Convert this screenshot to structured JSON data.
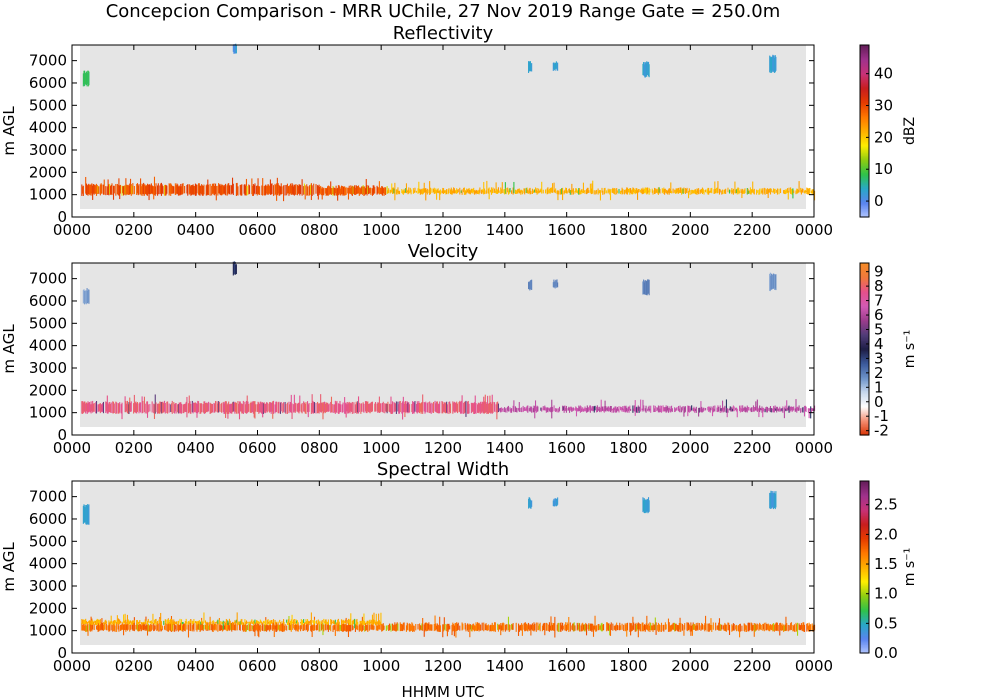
{
  "chart_data": [
    {
      "type": "heatmap",
      "panel_id": "reflectivity",
      "title": "Reflectivity",
      "ylabel": "m AGL",
      "xlabel": "",
      "x_ticks": [
        "0000",
        "0200",
        "0400",
        "0600",
        "0800",
        "1000",
        "1200",
        "1400",
        "1600",
        "1800",
        "2000",
        "2200",
        "0000"
      ],
      "xlim_hours": [
        0,
        24
      ],
      "y_ticks": [
        "0",
        "1000",
        "2000",
        "3000",
        "4000",
        "5000",
        "6000",
        "7000"
      ],
      "ylim": [
        0,
        7700
      ],
      "background": "#e5e5e5",
      "colorbar": {
        "label": "dBZ",
        "range": [
          -5,
          49
        ],
        "ticks": [
          "0",
          "10",
          "20",
          "30",
          "40"
        ],
        "tick_values": [
          0,
          10,
          20,
          30,
          40
        ],
        "colors": [
          "#b3c6ff",
          "#5a84ee",
          "#29a8c8",
          "#2fc24a",
          "#8ecc12",
          "#ffee00",
          "#ffb000",
          "#ff7800",
          "#e63c00",
          "#c81e1e",
          "#c83278",
          "#a0328c",
          "#641e5a"
        ]
      },
      "series": [
        {
          "layer": "boundary layer echo",
          "hours": [
            0.3,
            8.0
          ],
          "alt": [
            1000,
            1450
          ],
          "value": 30
        },
        {
          "layer": "boundary layer echo",
          "hours": [
            8.0,
            10.2
          ],
          "alt": [
            1000,
            1350
          ],
          "value": 29
        },
        {
          "layer": "boundary layer echo",
          "hours": [
            10.2,
            24.0
          ],
          "alt": [
            1050,
            1250
          ],
          "value": 22
        },
        {
          "layer": "high cloud",
          "hours": [
            0.35,
            0.55
          ],
          "alt": [
            5900,
            6500
          ],
          "value": 8
        },
        {
          "layer": "high cloud",
          "hours": [
            5.2,
            5.3
          ],
          "alt": [
            7350,
            7700
          ],
          "value": 2
        },
        {
          "layer": "high cloud",
          "hours": [
            14.75,
            14.85
          ],
          "alt": [
            6500,
            6900
          ],
          "value": 3
        },
        {
          "layer": "high cloud",
          "hours": [
            15.55,
            15.7
          ],
          "alt": [
            6600,
            6900
          ],
          "value": 3
        },
        {
          "layer": "high cloud",
          "hours": [
            18.45,
            18.65
          ],
          "alt": [
            6300,
            6900
          ],
          "value": 3
        },
        {
          "layer": "high cloud",
          "hours": [
            22.55,
            22.75
          ],
          "alt": [
            6500,
            7200
          ],
          "value": 3
        }
      ]
    },
    {
      "type": "heatmap",
      "panel_id": "velocity",
      "title": "Velocity",
      "ylabel": "m AGL",
      "xlabel": "",
      "x_ticks": [
        "0000",
        "0200",
        "0400",
        "0600",
        "0800",
        "1000",
        "1200",
        "1400",
        "1600",
        "1800",
        "2000",
        "2200",
        "0000"
      ],
      "xlim_hours": [
        0,
        24
      ],
      "y_ticks": [
        "0",
        "1000",
        "2000",
        "3000",
        "4000",
        "5000",
        "6000",
        "7000"
      ],
      "ylim": [
        0,
        7700
      ],
      "background": "#e5e5e5",
      "colorbar": {
        "label": "m s⁻¹",
        "range": [
          -2.3,
          9.6
        ],
        "ticks": [
          "-2",
          "-1",
          "0",
          "1",
          "2",
          "3",
          "4",
          "5",
          "6",
          "7",
          "8",
          "9"
        ],
        "tick_values": [
          -2,
          -1,
          0,
          1,
          2,
          3,
          4,
          5,
          6,
          7,
          8,
          9
        ],
        "colors": [
          "#d73000",
          "#f48c70",
          "#ffffff",
          "#c8d8ee",
          "#6c92c8",
          "#3c5a9c",
          "#1e1e46",
          "#503c78",
          "#9b3c8c",
          "#d25ab4",
          "#e6508c",
          "#f0783c",
          "#f58c28"
        ]
      },
      "series": [
        {
          "layer": "boundary layer echo",
          "hours": [
            0.3,
            13.8
          ],
          "alt": [
            1000,
            1450
          ],
          "value": 7.8
        },
        {
          "layer": "boundary layer echo",
          "hours": [
            13.8,
            24.0
          ],
          "alt": [
            1050,
            1250
          ],
          "value": 6.3
        },
        {
          "layer": "high cloud",
          "hours": [
            0.35,
            0.55
          ],
          "alt": [
            5900,
            6500
          ],
          "value": 1.5
        },
        {
          "layer": "high cloud",
          "hours": [
            5.2,
            5.3
          ],
          "alt": [
            7200,
            7700
          ],
          "value": 3.2
        },
        {
          "layer": "high cloud",
          "hours": [
            14.75,
            14.85
          ],
          "alt": [
            6500,
            6900
          ],
          "value": 1.8
        },
        {
          "layer": "high cloud",
          "hours": [
            15.55,
            15.7
          ],
          "alt": [
            6600,
            6900
          ],
          "value": 1.8
        },
        {
          "layer": "high cloud",
          "hours": [
            18.45,
            18.65
          ],
          "alt": [
            6300,
            6900
          ],
          "value": 2.0
        },
        {
          "layer": "high cloud",
          "hours": [
            22.55,
            22.75
          ],
          "alt": [
            6500,
            7200
          ],
          "value": 1.6
        }
      ]
    },
    {
      "type": "heatmap",
      "panel_id": "spectral-width",
      "title": "Spectral Width",
      "ylabel": "m AGL",
      "xlabel": "HHMM UTC",
      "x_ticks": [
        "0000",
        "0200",
        "0400",
        "0600",
        "0800",
        "1000",
        "1200",
        "1400",
        "1600",
        "1800",
        "2000",
        "2200",
        "0000"
      ],
      "xlim_hours": [
        0,
        24
      ],
      "y_ticks": [
        "0",
        "1000",
        "2000",
        "3000",
        "4000",
        "5000",
        "6000",
        "7000"
      ],
      "ylim": [
        0,
        7700
      ],
      "background": "#e5e5e5",
      "colorbar": {
        "label": "m s⁻¹",
        "range": [
          0,
          2.9
        ],
        "ticks": [
          "0.0",
          "0.5",
          "1.0",
          "1.5",
          "2.0",
          "2.5"
        ],
        "tick_values": [
          0,
          0.5,
          1.0,
          1.5,
          2.0,
          2.5
        ],
        "colors": [
          "#b3c6ff",
          "#5a84ee",
          "#29a8c8",
          "#2fc24a",
          "#8ecc12",
          "#ffee00",
          "#ffb000",
          "#ff7800",
          "#e63c00",
          "#c81e1e",
          "#c83278",
          "#a0328c",
          "#641e5a"
        ]
      },
      "series": [
        {
          "layer": "boundary layer echo",
          "hours": [
            0.3,
            24.0
          ],
          "alt": [
            1000,
            1300
          ],
          "value": 1.75
        },
        {
          "layer": "boundary layer echo (upper)",
          "hours": [
            0.3,
            10.0
          ],
          "alt": [
            1300,
            1450
          ],
          "value": 1.45
        },
        {
          "layer": "high cloud",
          "hours": [
            0.35,
            0.55
          ],
          "alt": [
            5800,
            6600
          ],
          "value": 0.4
        },
        {
          "layer": "high cloud",
          "hours": [
            14.75,
            14.85
          ],
          "alt": [
            6500,
            6900
          ],
          "value": 0.4
        },
        {
          "layer": "high cloud",
          "hours": [
            15.55,
            15.7
          ],
          "alt": [
            6600,
            6900
          ],
          "value": 0.4
        },
        {
          "layer": "high cloud",
          "hours": [
            18.45,
            18.65
          ],
          "alt": [
            6300,
            6900
          ],
          "value": 0.45
        },
        {
          "layer": "high cloud",
          "hours": [
            22.55,
            22.75
          ],
          "alt": [
            6500,
            7200
          ],
          "value": 0.4
        }
      ]
    }
  ],
  "figure": {
    "suptitle": "Concepcion Comparison - MRR UChile, 27 Nov 2019 Range Gate = 250.0m"
  }
}
